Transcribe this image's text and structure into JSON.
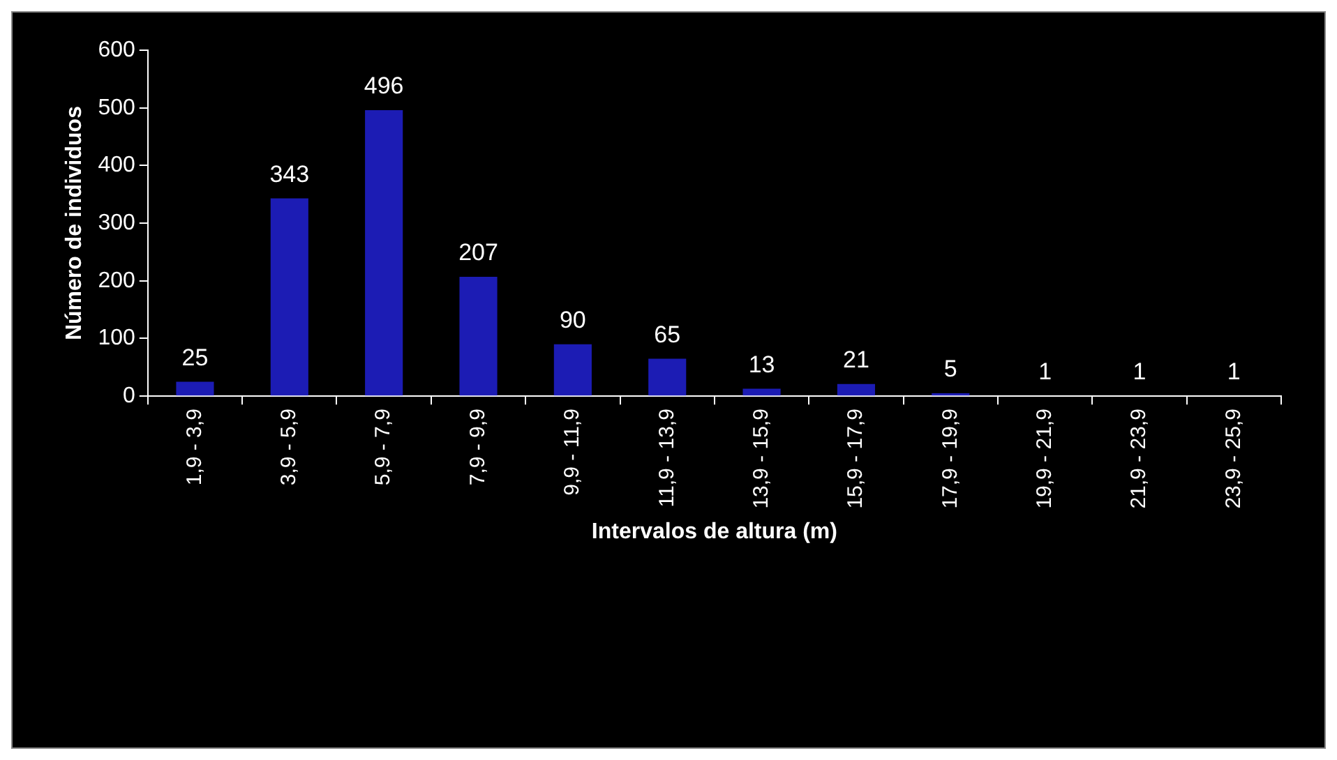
{
  "chart_data": {
    "type": "bar",
    "xlabel": "Intervalos de altura (m)",
    "ylabel": "Número de individuos",
    "categories": [
      "1,9 - 3,9",
      "3,9 - 5,9",
      "5,9 - 7,9",
      "7,9 - 9,9",
      "9,9 - 11,9",
      "11,9 - 13,9",
      "13,9 - 15,9",
      "15,9 - 17,9",
      "17,9 - 19,9",
      "19,9 - 21,9",
      "21,9 - 23,9",
      "23,9 - 25,9"
    ],
    "values": [
      25,
      343,
      496,
      207,
      90,
      65,
      13,
      21,
      5,
      1,
      1,
      1
    ],
    "color": "#1c1cb4",
    "ylim": [
      0,
      600
    ],
    "yticks": [
      0,
      100,
      200,
      300,
      400,
      500,
      600
    ],
    "data_labels": true
  }
}
